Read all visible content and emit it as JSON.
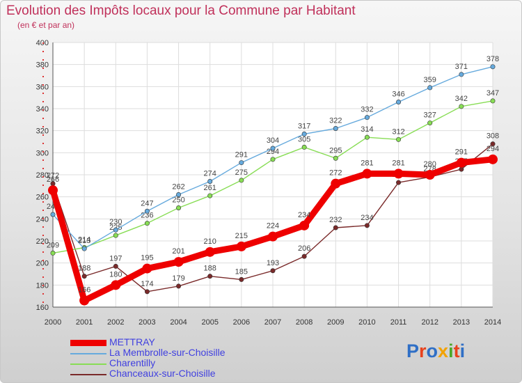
{
  "title": "Evolution des Impôts locaux pour la Commune par Habitant",
  "subtitle": "(en € et par an)",
  "logo": {
    "text": "Proxiti",
    "letters": [
      "P",
      "r",
      "o",
      "x",
      "i",
      "t",
      "i"
    ],
    "colors": [
      "#2f6fc6",
      "#e8421d",
      "#2f6fc6",
      "#f2a200",
      "#4ca82a",
      "#e8421d",
      "#2f6fc6"
    ]
  },
  "chart_data": {
    "type": "line",
    "x": [
      "2000",
      "2001",
      "2002",
      "2003",
      "2004",
      "2005",
      "2006",
      "2007",
      "2008",
      "2009",
      "2010",
      "2011",
      "2012",
      "2013",
      "2014"
    ],
    "ylim": [
      160,
      400
    ],
    "yticks": [
      160,
      180,
      200,
      220,
      240,
      260,
      280,
      300,
      320,
      340,
      360,
      380,
      400
    ],
    "grid": true,
    "legend_position": "bottom-left",
    "series": [
      {
        "name": "Chanceaux-sur-Choisille",
        "color": "#7a2a2a",
        "values": [
          272,
          188,
          197,
          174,
          179,
          188,
          185,
          193,
          206,
          232,
          234,
          273,
          278,
          285,
          308
        ]
      },
      {
        "name": "Charentilly",
        "color": "#88dd55",
        "values": [
          209,
          214,
          225,
          236,
          250,
          261,
          275,
          294,
          305,
          295,
          314,
          312,
          327,
          342,
          347
        ]
      },
      {
        "name": "La Membrolle-sur-Choisille",
        "color": "#66aadd",
        "values": [
          244,
          213,
          230,
          247,
          262,
          274,
          291,
          304,
          317,
          322,
          332,
          346,
          359,
          371,
          378
        ]
      },
      {
        "name": "METTRAY",
        "color": "#ee0000",
        "values": [
          266,
          166,
          180,
          195,
          201,
          210,
          215,
          224,
          234,
          272,
          281,
          281,
          280,
          291,
          294
        ]
      }
    ]
  },
  "legend": [
    {
      "name": "METTRAY",
      "color": "#ee0000",
      "thick": true
    },
    {
      "name": "La Membrolle-sur-Choisille",
      "color": "#66aadd",
      "thick": false
    },
    {
      "name": "Charentilly",
      "color": "#88dd55",
      "thick": false
    },
    {
      "name": "Chanceaux-sur-Choisille",
      "color": "#7a2a2a",
      "thick": false
    }
  ]
}
